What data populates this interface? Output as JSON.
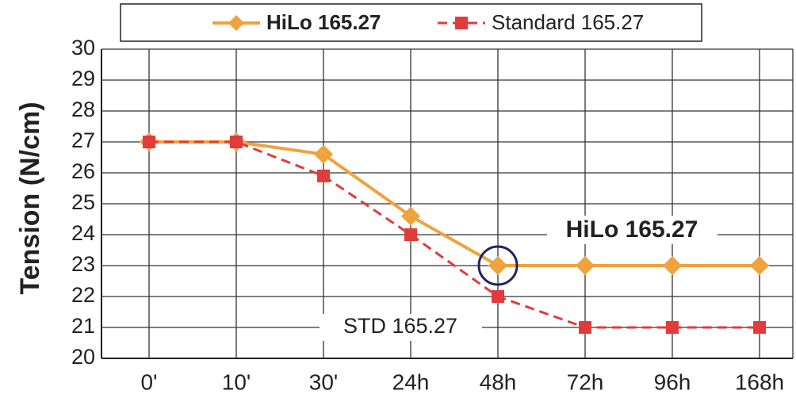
{
  "chart_data": {
    "type": "line",
    "y_label": "Tension (N/cm)",
    "categories": [
      "0'",
      "10'",
      "30'",
      "24h",
      "48h",
      "72h",
      "96h",
      "168h"
    ],
    "series": [
      {
        "name": "HiLo 165.27",
        "color": "#f0a23c",
        "values": [
          27,
          27,
          26.6,
          24.6,
          23,
          23,
          23,
          23
        ]
      },
      {
        "name": "Standard 165.27",
        "color": "#e03c3c",
        "values": [
          27,
          27,
          25.9,
          24,
          22,
          21,
          21,
          21
        ]
      }
    ],
    "annotations": [
      "HiLo 165.27",
      "STD 165.27"
    ],
    "ylim": [
      20,
      30
    ],
    "yticks": [
      20,
      21,
      22,
      23,
      24,
      25,
      26,
      27,
      28,
      29,
      30
    ],
    "grid": true
  }
}
